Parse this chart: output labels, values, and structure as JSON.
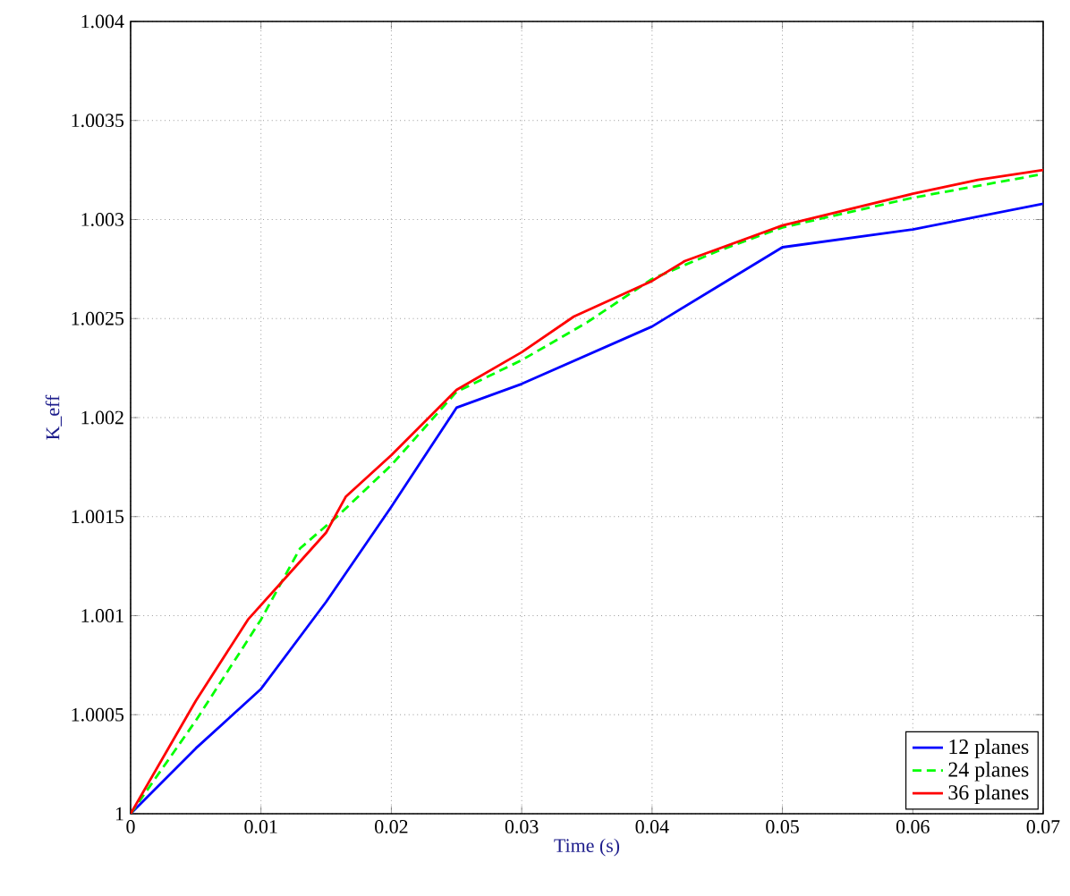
{
  "chart_data": {
    "type": "line",
    "xlabel": "Time (s)",
    "ylabel": "K_eff",
    "xlim": [
      0,
      0.07
    ],
    "ylim": [
      1,
      1.004
    ],
    "xticks": [
      0,
      0.01,
      0.02,
      0.03,
      0.04,
      0.05,
      0.06,
      0.07
    ],
    "yticks": [
      1,
      1.0005,
      1.001,
      1.0015,
      1.002,
      1.0025,
      1.003,
      1.0035,
      1.004
    ],
    "grid": true,
    "legend": "bottom right",
    "marker": "none",
    "series": [
      {
        "name": "12 planes",
        "color": "#0000ff",
        "line_style": "solid",
        "x": [
          0,
          0.005,
          0.01,
          0.015,
          0.02,
          0.025,
          0.03,
          0.04,
          0.045,
          0.05,
          0.06,
          0.07
        ],
        "values": [
          1,
          1.00033,
          1.00063,
          1.00107,
          1.00155,
          1.00205,
          1.00217,
          1.00246,
          1.00266,
          1.00286,
          1.00295,
          1.00308
        ]
      },
      {
        "name": "24 planes",
        "color": "#00ff00",
        "line_style": "dashed",
        "x": [
          0,
          0.005,
          0.01,
          0.013,
          0.016,
          0.02,
          0.025,
          0.03,
          0.035,
          0.04,
          0.045,
          0.05,
          0.06,
          0.07
        ],
        "values": [
          1,
          1.00047,
          1.00098,
          1.00134,
          1.00151,
          1.00176,
          1.00213,
          1.00229,
          1.00248,
          1.0027,
          1.00284,
          1.00296,
          1.00311,
          1.00323
        ]
      },
      {
        "name": "36 planes",
        "color": "#ff0000",
        "line_style": "solid",
        "x": [
          0,
          0.005,
          0.009,
          0.012,
          0.015,
          0.0165,
          0.02,
          0.025,
          0.03,
          0.034,
          0.04,
          0.0425,
          0.05,
          0.06,
          0.065,
          0.07
        ],
        "values": [
          1,
          1.00057,
          1.00098,
          1.0012,
          1.00142,
          1.0016,
          1.00181,
          1.00214,
          1.00233,
          1.00251,
          1.00269,
          1.00279,
          1.00297,
          1.00313,
          1.0032,
          1.00325
        ]
      }
    ]
  }
}
